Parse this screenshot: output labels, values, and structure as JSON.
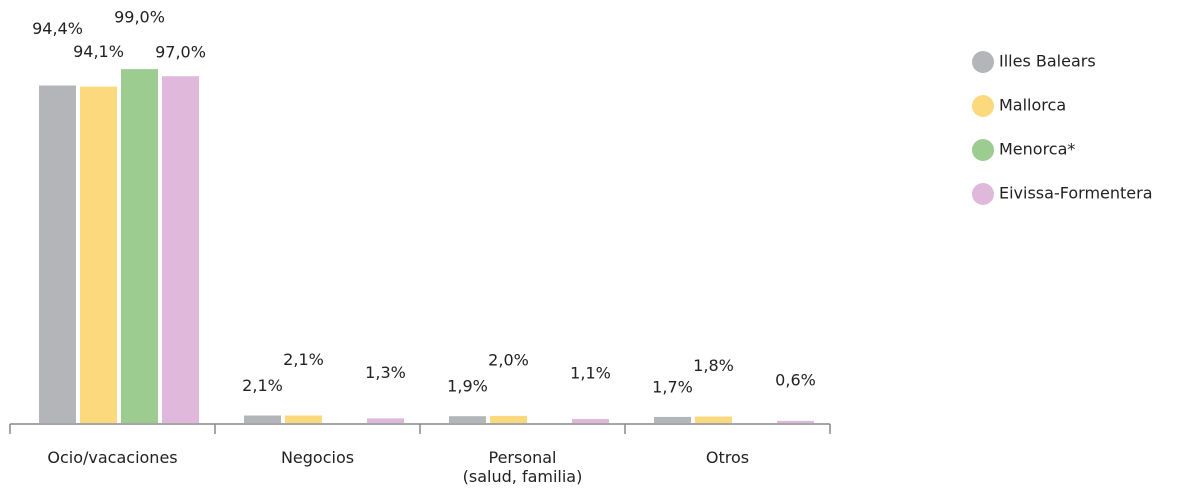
{
  "chart_data": {
    "type": "bar",
    "categories": [
      "Ocio/vacaciones",
      "Negocios",
      "Personal\n(salud, familia)",
      "Otros"
    ],
    "series": [
      {
        "name": "Illes Balears",
        "color": "#b3b5b8",
        "values": [
          94.4,
          2.1,
          1.9,
          1.7
        ],
        "value_labels": [
          "94,4%",
          "2,1%",
          "1,9%",
          "1,7%"
        ]
      },
      {
        "name": "Mallorca",
        "color": "#fdd97e",
        "values": [
          94.1,
          2.1,
          2.0,
          1.8
        ],
        "value_labels": [
          "94,1%",
          "2,1%",
          "2,0%",
          "1,8%"
        ]
      },
      {
        "name": "Menorca*",
        "color": "#9dcc91",
        "values": [
          99.0,
          null,
          null,
          null
        ],
        "value_labels": [
          "99,0%",
          null,
          null,
          null
        ]
      },
      {
        "name": "Eivissa-Formentera",
        "color": "#dfb8dc",
        "values": [
          97.0,
          1.3,
          1.1,
          0.6
        ],
        "value_labels": [
          "97,0%",
          "1,3%",
          "1,1%",
          "0,6%"
        ]
      }
    ]
  }
}
